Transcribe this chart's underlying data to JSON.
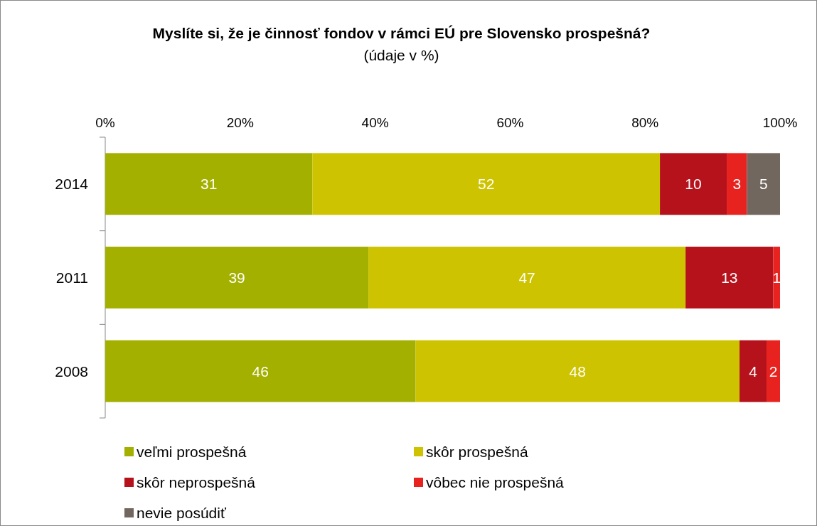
{
  "chart_data": {
    "type": "bar",
    "orientation": "horizontal",
    "stacked": true,
    "title": "Myslíte si, že je činnosť fondov v rámci EÚ pre Slovensko prospešná?",
    "subtitle": "(údaje v %)",
    "categories": [
      "2014",
      "2011",
      "2008"
    ],
    "series": [
      {
        "name": "veľmi prospešná",
        "color": "#a3b000",
        "values": [
          30.7,
          39,
          46
        ],
        "value_labels": [
          "31",
          "39",
          "46"
        ]
      },
      {
        "name": "skôr prospešná",
        "color": "#cdc300",
        "values": [
          51.5,
          47,
          48
        ],
        "value_labels": [
          "52",
          "47",
          "48"
        ]
      },
      {
        "name": "skôr neprospešná",
        "color": "#b5121b",
        "values": [
          9.9,
          13,
          4
        ],
        "value_labels": [
          "10",
          "13",
          "4"
        ]
      },
      {
        "name": "vôbec nie prospešná",
        "color": "#e8221f",
        "values": [
          3,
          1,
          2
        ],
        "value_labels": [
          "3",
          "1",
          "2"
        ]
      },
      {
        "name": "nevie posúdiť",
        "color": "#72675f",
        "values": [
          4.9,
          null,
          null
        ],
        "value_labels": [
          "5",
          null,
          null
        ]
      }
    ],
    "xlim": [
      0,
      100
    ],
    "xticks": [
      {
        "value": 0,
        "label": "0%"
      },
      {
        "value": 20,
        "label": "20%"
      },
      {
        "value": 40,
        "label": "40%"
      },
      {
        "value": 60,
        "label": "60%"
      },
      {
        "value": 80,
        "label": "80%"
      },
      {
        "value": 100,
        "label": "100%"
      }
    ],
    "legend": "bottom"
  }
}
